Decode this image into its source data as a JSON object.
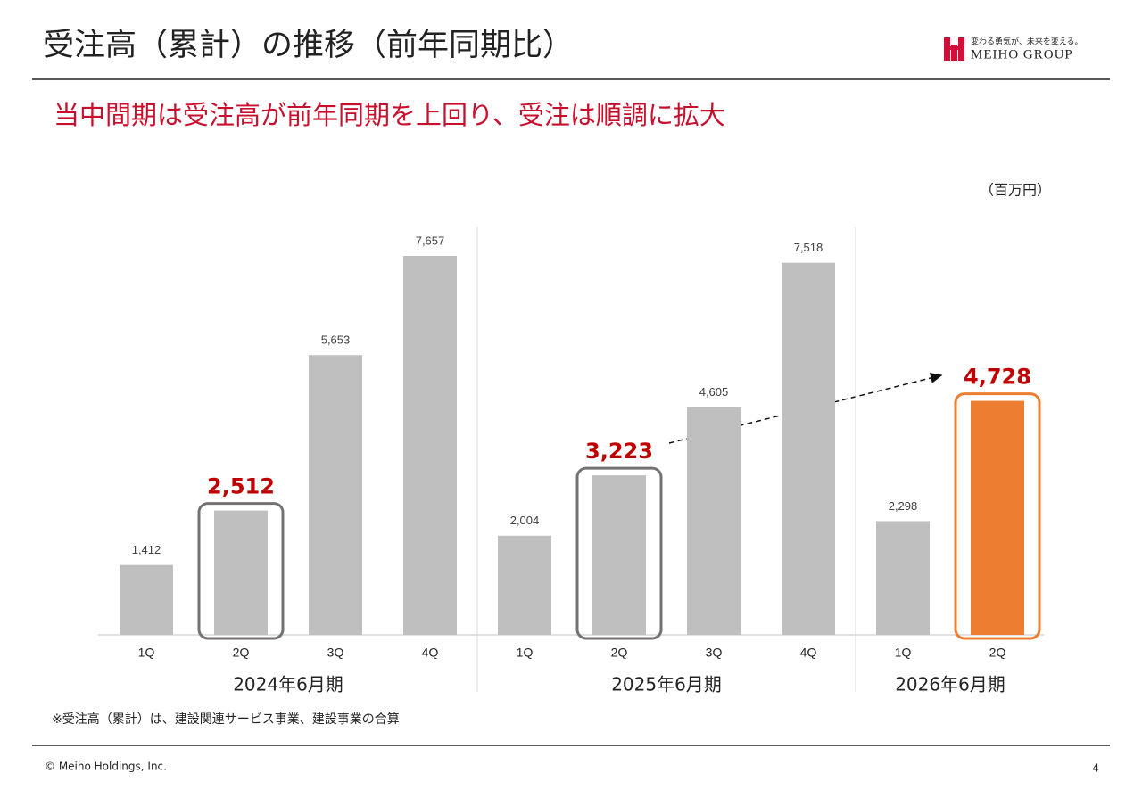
{
  "header": {
    "title": "受注高（累計）の推移（前年同期比）",
    "logo_tagline": "変わる勇気が、未来を変える。",
    "logo_name": "MEIHO GROUP"
  },
  "subtitle": "当中間期は受注高が前年同期を上回り、受注は順調に拡大",
  "chart_data": {
    "type": "bar",
    "unit": "（百万円）",
    "color": "#bfbfbf",
    "groups": [
      {
        "name": "2024年6月期",
        "categories": [
          "1Q",
          "2Q",
          "3Q",
          "4Q"
        ],
        "values": [
          1412,
          2512,
          5653,
          7657
        ],
        "value_labels": [
          "1,412",
          "2,512",
          "5,653",
          "7,657"
        ],
        "colors": [
          "#bfbfbf",
          "#bfbfbf",
          "#bfbfbf",
          "#bfbfbf"
        ],
        "box_colors": [
          null,
          "#767171",
          null,
          null
        ]
      },
      {
        "name": "2025年6月期",
        "categories": [
          "1Q",
          "2Q",
          "3Q",
          "4Q"
        ],
        "values": [
          2004,
          3223,
          4605,
          7518
        ],
        "value_labels": [
          "2,004",
          "3,223",
          "4,605",
          "7,518"
        ],
        "colors": [
          "#bfbfbf",
          "#bfbfbf",
          "#bfbfbf",
          "#bfbfbf"
        ],
        "box_colors": [
          null,
          "#767171",
          null,
          null
        ]
      },
      {
        "name": "2026年6月期",
        "categories": [
          "1Q",
          "2Q"
        ],
        "values": [
          2298,
          4728
        ],
        "value_labels": [
          "2,298",
          "4,728"
        ],
        "colors": [
          "#bfbfbf",
          "#ed7d31"
        ],
        "box_colors": [
          null,
          "#ed7d31"
        ]
      }
    ]
  },
  "footnote": "※受注高（累計）は、建設関連サービス事業、建設事業の合算",
  "footer": {
    "copyright": "© Meiho Holdings, Inc.",
    "page": "4"
  }
}
